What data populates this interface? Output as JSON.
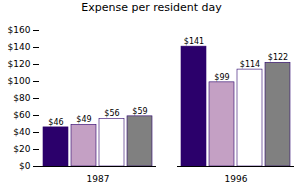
{
  "chart_data": {
    "type": "bar",
    "title": "Expense per resident day",
    "categories": [
      "1987",
      "1996"
    ],
    "series": [
      {
        "color": "#2b006b",
        "values": [
          46,
          141
        ],
        "value_labels": [
          "$46",
          "$141"
        ]
      },
      {
        "color": "#c4a0c4",
        "values": [
          49,
          99
        ],
        "value_labels": [
          "$49",
          "$99"
        ]
      },
      {
        "color": "#ffffff",
        "values": [
          56,
          114
        ],
        "value_labels": [
          "$56",
          "$114"
        ]
      },
      {
        "color": "#808080",
        "values": [
          59,
          122
        ],
        "value_labels": [
          "$59",
          "$122"
        ]
      }
    ],
    "ylim": [
      0,
      160
    ],
    "yticks": [
      {
        "value": 0,
        "label": "$0"
      },
      {
        "value": 20,
        "label": "$20"
      },
      {
        "value": 40,
        "label": "$40"
      },
      {
        "value": 60,
        "label": "$60"
      },
      {
        "value": 80,
        "label": "$80"
      },
      {
        "value": 100,
        "label": "$100"
      },
      {
        "value": 120,
        "label": "$120"
      },
      {
        "value": 140,
        "label": "$140"
      },
      {
        "value": 160,
        "label": "$160"
      }
    ],
    "grid": false,
    "data_labels": true
  }
}
